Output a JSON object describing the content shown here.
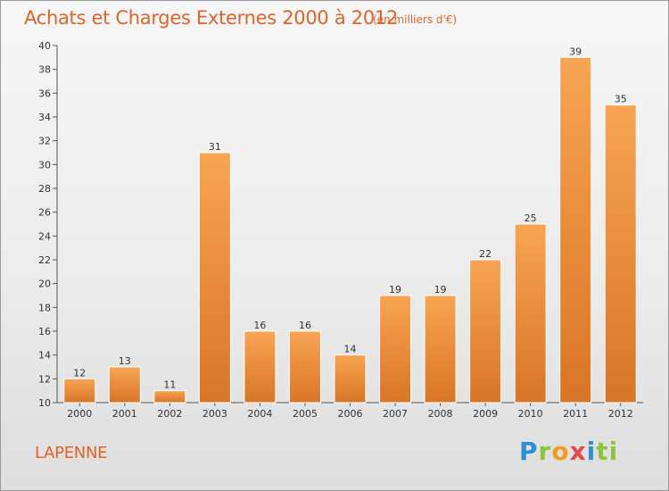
{
  "header": {
    "title": "Achats et Charges Externes 2000 à 2012",
    "subtitle": "(en milliers d'€)"
  },
  "footer": {
    "commune": "LAPENNE",
    "logo_letters": [
      "P",
      "r",
      "o",
      "x",
      "i",
      "t",
      "i"
    ]
  },
  "colors": {
    "bar_light": "#f7a553",
    "bar_dark": "#d97526",
    "title": "#e0642a"
  },
  "chart_data": {
    "type": "bar",
    "title": "Achats et Charges Externes 2000 à 2012",
    "subtitle": "(en milliers d'€)",
    "categories": [
      "2000",
      "2001",
      "2002",
      "2003",
      "2004",
      "2005",
      "2006",
      "2007",
      "2008",
      "2009",
      "2010",
      "2011",
      "2012"
    ],
    "values": [
      12,
      13,
      11,
      31,
      16,
      16,
      14,
      19,
      19,
      22,
      25,
      39,
      35
    ],
    "ylim": [
      10,
      40
    ],
    "yticks": [
      10,
      12,
      14,
      16,
      18,
      20,
      22,
      24,
      26,
      28,
      30,
      32,
      34,
      36,
      38,
      40
    ],
    "grid": false,
    "data_labels": true
  }
}
